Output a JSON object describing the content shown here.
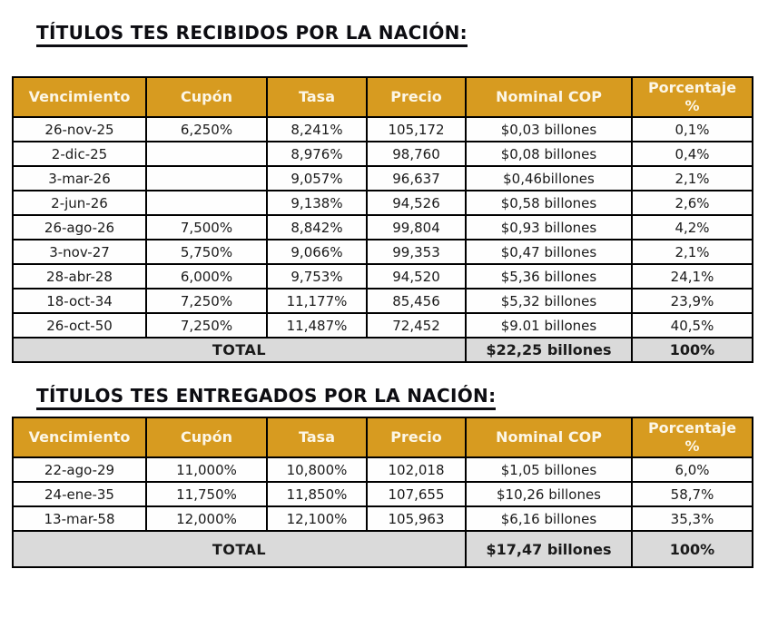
{
  "colors": {
    "header_bg": "#D79B20",
    "header_fg": "#FCF6E6",
    "total_bg": "#DADADA",
    "border": "#000000",
    "body_text": "#1A1A1A",
    "title_text": "#0D0D12",
    "page_bg": "#FFFFFF"
  },
  "tables": [
    {
      "title": "TÍTULOS TES RECIBIDOS POR LA NACIÓN:",
      "columns": [
        "Vencimiento",
        "Cupón",
        "Tasa",
        "Precio",
        "Nominal COP",
        "Porcentaje\n%"
      ],
      "rows": [
        [
          "26-nov-25",
          "6,250%",
          "8,241%",
          "105,172",
          "$0,03 billones",
          "0,1%"
        ],
        [
          "2-dic-25",
          "",
          "8,976%",
          "98,760",
          "$0,08 billones",
          "0,4%"
        ],
        [
          "3-mar-26",
          "",
          "9,057%",
          "96,637",
          "$0,46billones",
          "2,1%"
        ],
        [
          "2-jun-26",
          "",
          "9,138%",
          "94,526",
          "$0,58 billones",
          "2,6%"
        ],
        [
          "26-ago-26",
          "7,500%",
          "8,842%",
          "99,804",
          "$0,93 billones",
          "4,2%"
        ],
        [
          "3-nov-27",
          "5,750%",
          "9,066%",
          "99,353",
          "$0,47 billones",
          "2,1%"
        ],
        [
          "28-abr-28",
          "6,000%",
          "9,753%",
          "94,520",
          "$5,36 billones",
          "24,1%"
        ],
        [
          "18-oct-34",
          "7,250%",
          "11,177%",
          "85,456",
          "$5,32 billones",
          "23,9%"
        ],
        [
          "26-oct-50",
          "7,250%",
          "11,487%",
          "72,452",
          "$9.01 billones",
          "40,5%"
        ]
      ],
      "total": {
        "label": "TOTAL",
        "nominal": "$22,25 billones",
        "percentage": "100%"
      }
    },
    {
      "title": "TÍTULOS TES ENTREGADOS POR LA NACIÓN:",
      "columns": [
        "Vencimiento",
        "Cupón",
        "Tasa",
        "Precio",
        "Nominal COP",
        "Porcentaje\n%"
      ],
      "rows": [
        [
          "22-ago-29",
          "11,000%",
          "10,800%",
          "102,018",
          "$1,05 billones",
          "6,0%"
        ],
        [
          "24-ene-35",
          "11,750%",
          "11,850%",
          "107,655",
          "$10,26 billones",
          "58,7%"
        ],
        [
          "13-mar-58",
          "12,000%",
          "12,100%",
          "105,963",
          "$6,16 billones",
          "35,3%"
        ]
      ],
      "total": {
        "label": "TOTAL",
        "nominal": "$17,47 billones",
        "percentage": "100%"
      }
    }
  ]
}
